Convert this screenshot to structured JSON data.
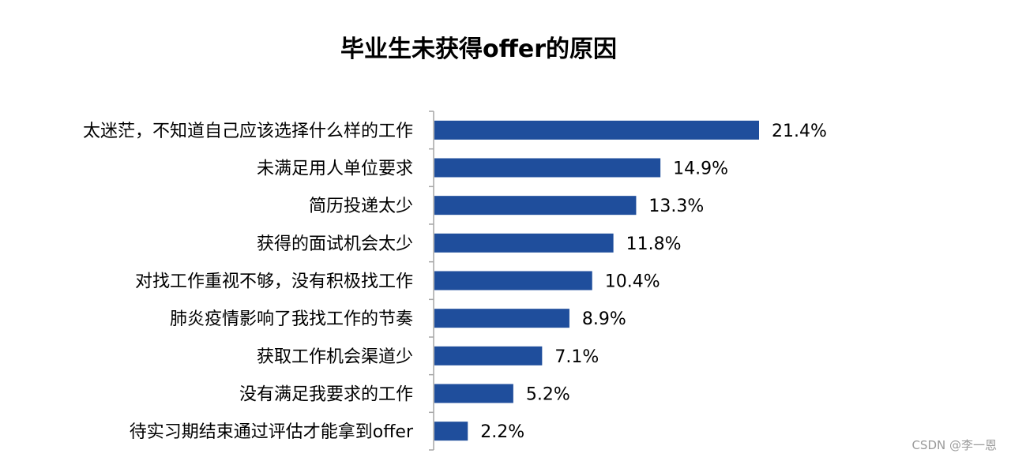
{
  "watermark": "CSDN @李一恩",
  "chart_data": {
    "type": "bar",
    "orientation": "horizontal",
    "title": "毕业生未获得offer的原因",
    "categories": [
      "太迷茫，不知道自己应该选择什么样的工作",
      "未满足用人单位要求",
      "简历投递太少",
      "获得的面试机会太少",
      "对找工作重视不够，没有积极找工作",
      "肺炎疫情影响了我找工作的节奏",
      "获取工作机会渠道少",
      "没有满足我要求的工作",
      "待实习期结束通过评估才能拿到offer"
    ],
    "values": [
      21.4,
      14.9,
      13.3,
      11.8,
      10.4,
      8.9,
      7.1,
      5.2,
      2.2
    ],
    "value_labels": [
      "21.4%",
      "14.9%",
      "13.3%",
      "11.8%",
      "10.4%",
      "8.9%",
      "7.1%",
      "5.2%",
      "2.2%"
    ],
    "bar_color": "#1f4e9c",
    "axis_color": "#a6a6a6",
    "grid": false,
    "legend": "none"
  }
}
